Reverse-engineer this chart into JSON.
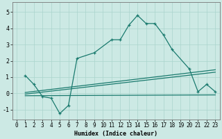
{
  "title": "",
  "xlabel": "Humidex (Indice chaleur)",
  "bg_color": "#cce9e4",
  "grid_color": "#aad4cc",
  "line_color": "#1a7a6e",
  "xlim": [
    -0.5,
    23.5
  ],
  "ylim": [
    -1.6,
    5.6
  ],
  "yticks": [
    -1,
    0,
    1,
    2,
    3,
    4,
    5
  ],
  "xticks": [
    0,
    1,
    2,
    3,
    4,
    5,
    6,
    7,
    8,
    9,
    10,
    11,
    12,
    13,
    14,
    15,
    16,
    17,
    18,
    19,
    20,
    21,
    22,
    23
  ],
  "line1_x": [
    1,
    2,
    3,
    4,
    5,
    6,
    7,
    9,
    11,
    12,
    13,
    14,
    15,
    16,
    17,
    18,
    20,
    21,
    22,
    23
  ],
  "line1_y": [
    1.1,
    0.55,
    -0.2,
    -0.3,
    -1.25,
    -0.75,
    2.15,
    2.5,
    3.3,
    3.3,
    4.2,
    4.8,
    4.3,
    4.3,
    3.6,
    2.7,
    1.5,
    0.1,
    0.55,
    0.1
  ],
  "line2_x": [
    1,
    23
  ],
  "line2_y": [
    0.05,
    1.45
  ],
  "line3_x": [
    1,
    23
  ],
  "line3_y": [
    -0.05,
    1.3
  ],
  "line4_x": [
    1,
    23
  ],
  "line4_y": [
    -0.15,
    -0.1
  ],
  "xlabel_fontsize": 6,
  "tick_fontsize": 5.5
}
